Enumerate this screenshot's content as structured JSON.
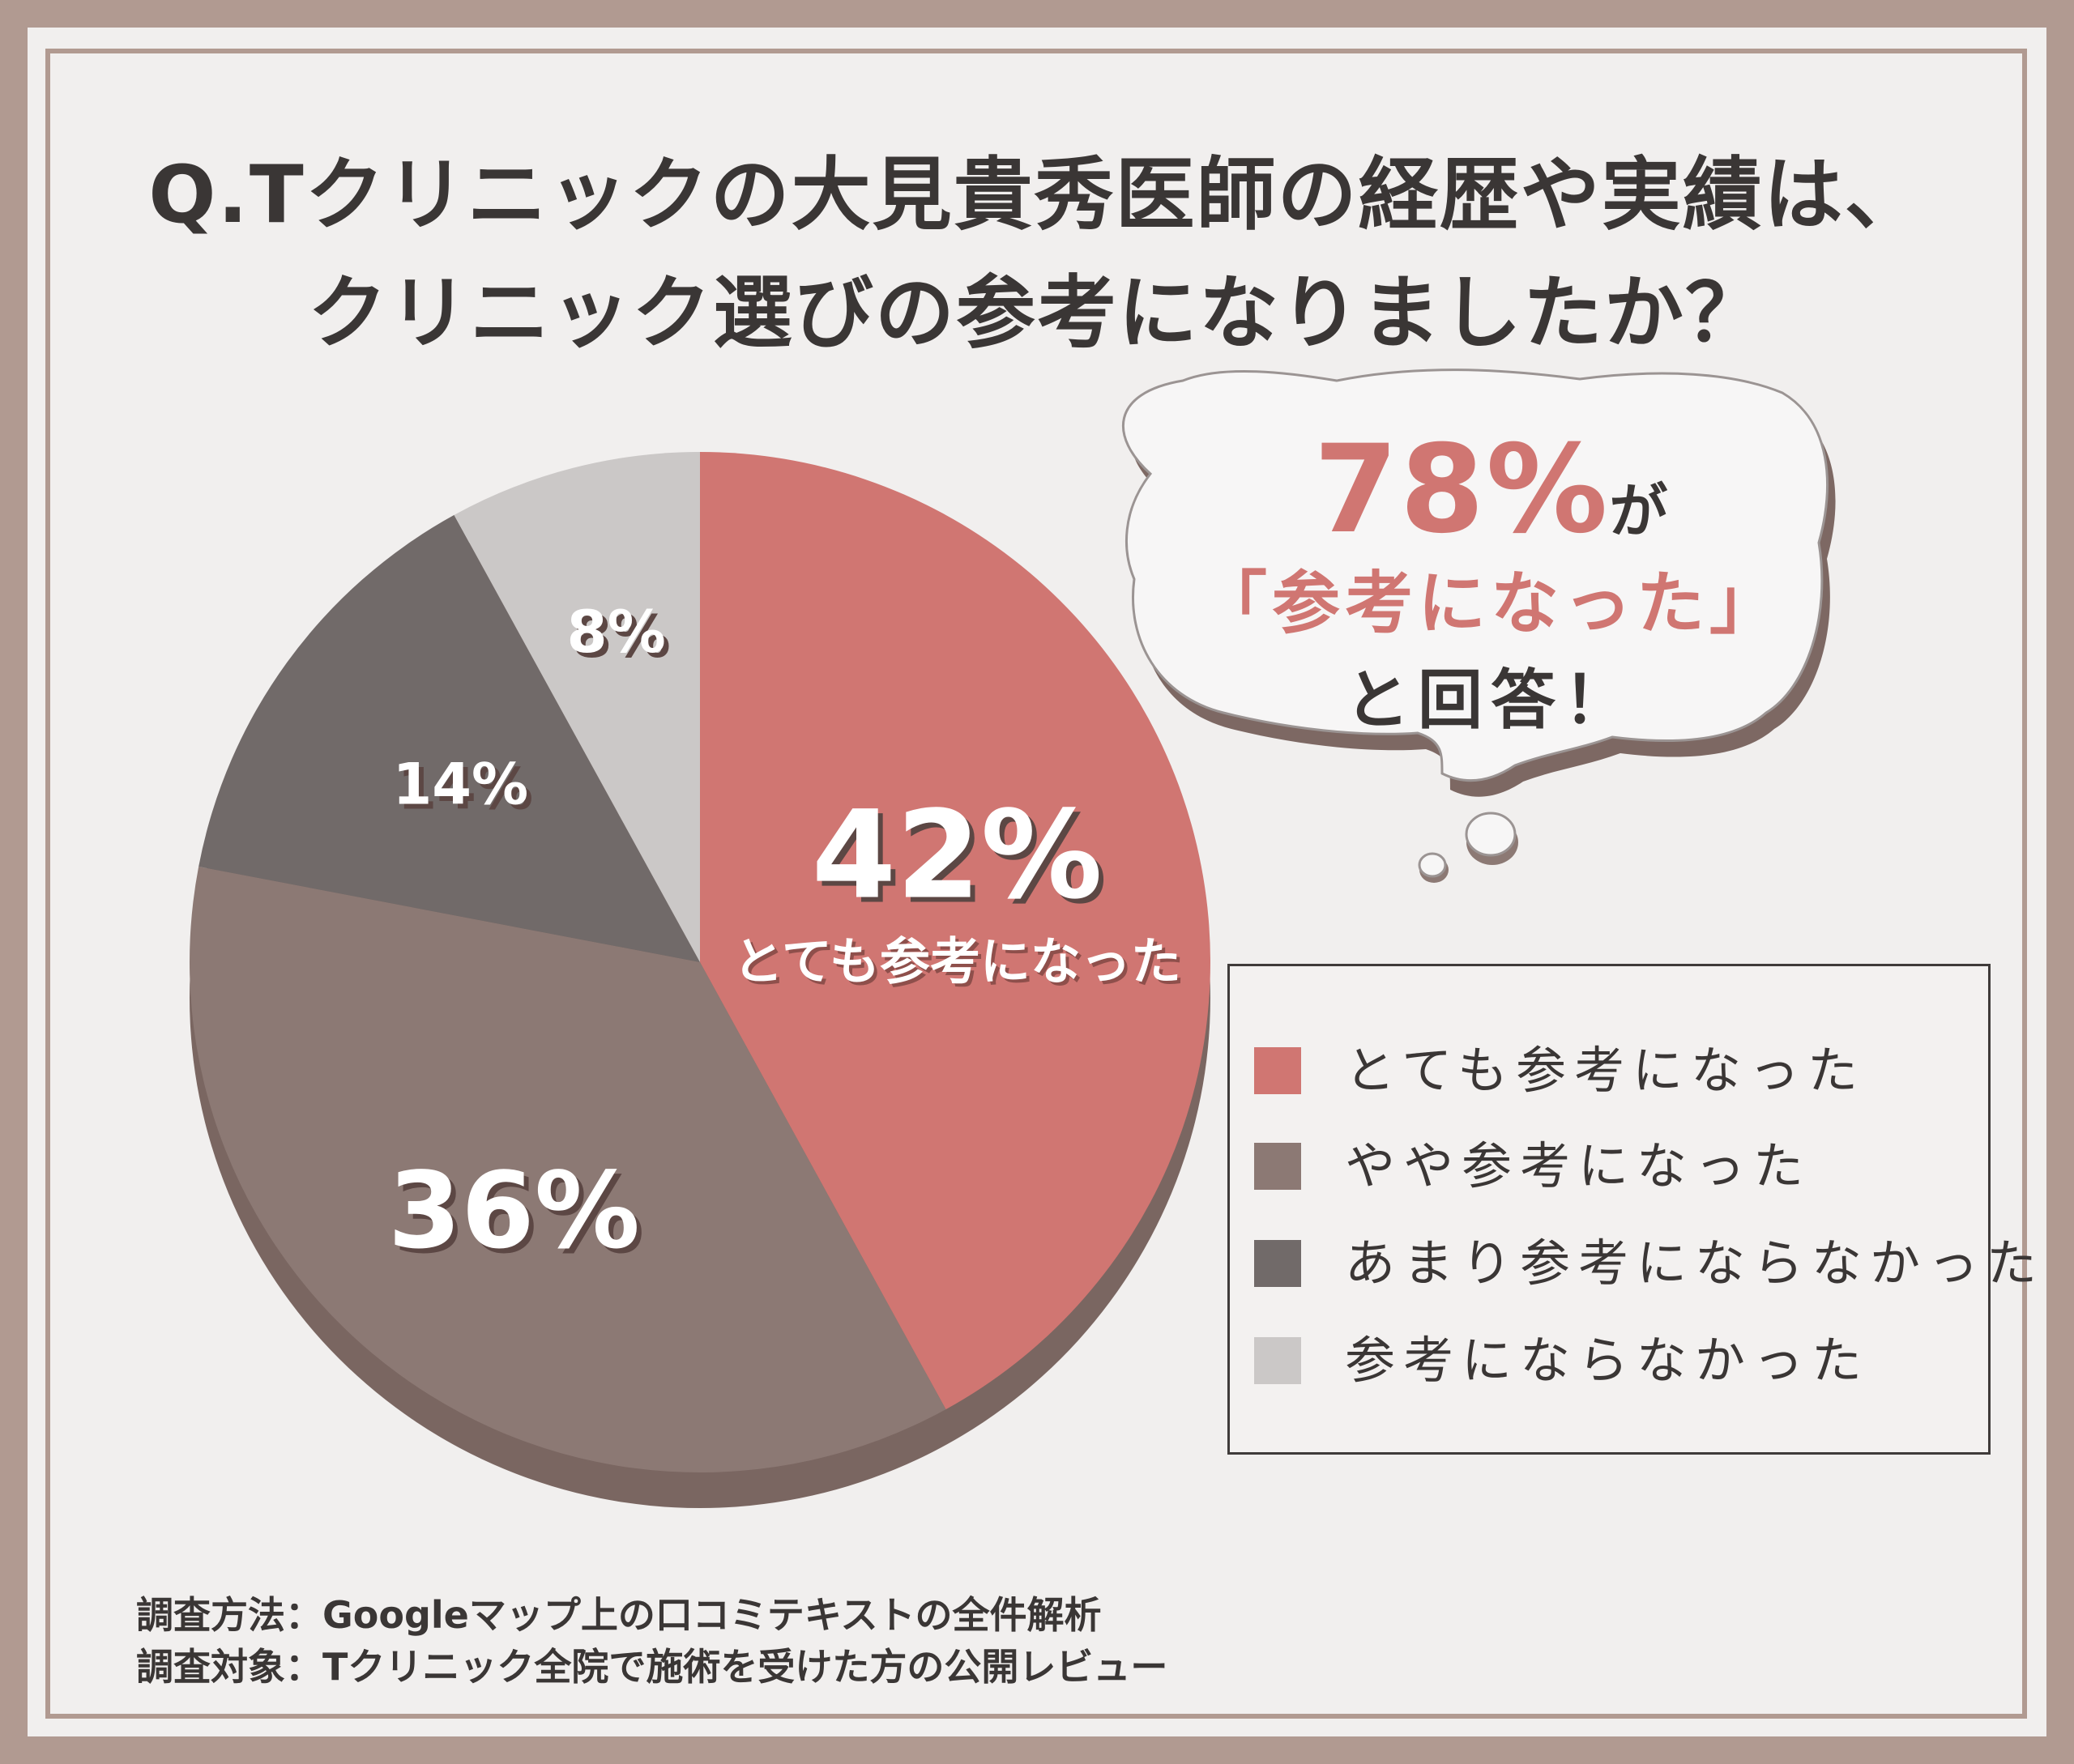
{
  "title": {
    "line1": "Q.Tクリニックの大見貴秀医師の経歴や実績は、",
    "line2": "クリニック選びの参考になりましたか？"
  },
  "chart_data": {
    "type": "pie",
    "categories": [
      "とても参考になった",
      "やや参考になった",
      "あまり参考にならなかった",
      "参考にならなかった"
    ],
    "values": [
      42,
      36,
      14,
      8
    ],
    "labels": [
      "42%",
      "36%",
      "14%",
      "8%"
    ],
    "slice_caption": "とても参考になった",
    "colors": [
      "#d07672",
      "#8c7974",
      "#716a69",
      "#cbc8c7"
    ],
    "legend_position": "right"
  },
  "callout": {
    "pct": "78%",
    "ga": "が",
    "quote": "「参考になった」",
    "answer": "と回答！"
  },
  "legend": {
    "items": [
      {
        "label": "とても参考になった",
        "color": "#d07672"
      },
      {
        "label": "やや参考になった",
        "color": "#8c7974"
      },
      {
        "label": "あまり参考にならなかった",
        "color": "#716a69"
      },
      {
        "label": "参考にならなかった",
        "color": "#cbc8c7"
      }
    ]
  },
  "notes": {
    "method": "調査方法：Googleマップ上の口コミテキストの全件解析",
    "target": "調査対象：Tクリニック全院で施術を受けた方の公開レビュー"
  }
}
